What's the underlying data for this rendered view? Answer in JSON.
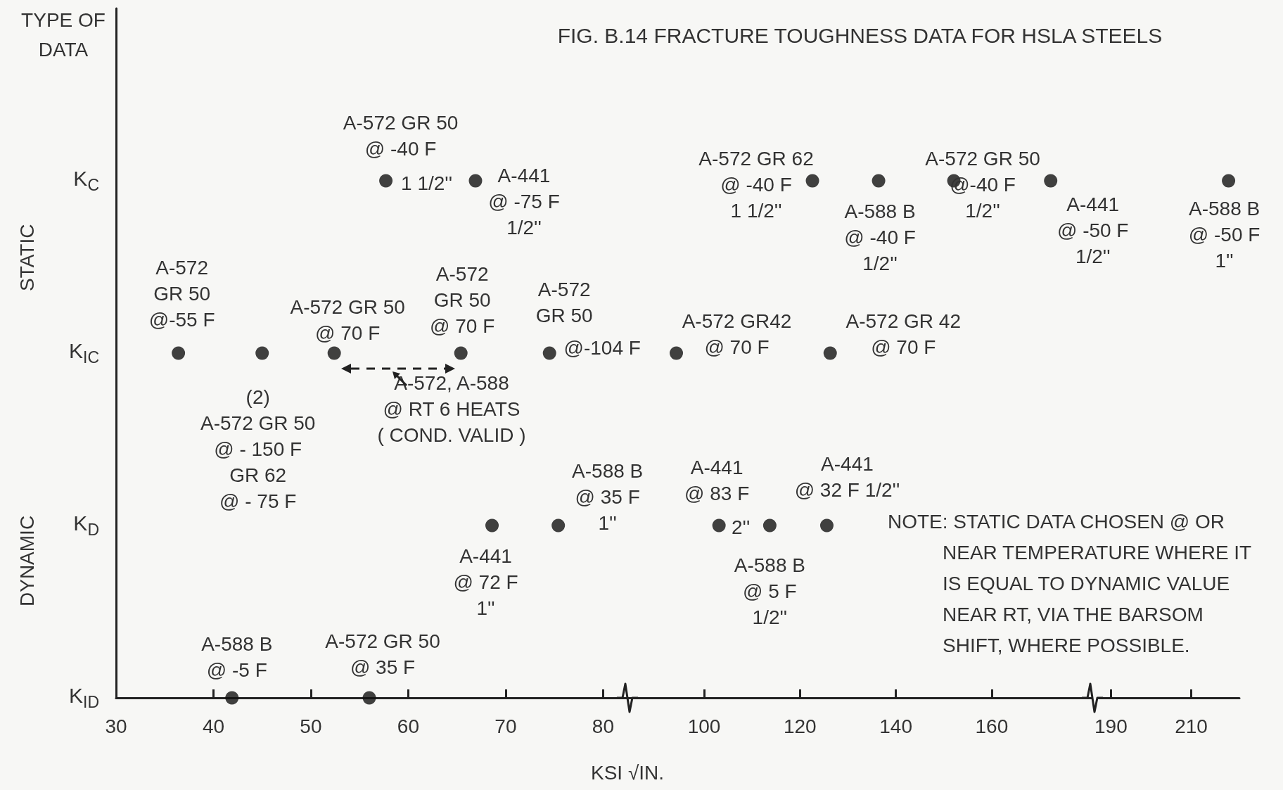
{
  "chart_data": [
    {
      "type": "scatter",
      "orientation": "horizontal",
      "ylabel": "TYPE OF\nDATA",
      "xlabel": "KSI √IN.",
      "marker": "circle",
      "grid": false,
      "categories": [
        "K$_{C}$",
        "K$_{IC}$",
        "K$_{D}$",
        "K$_{ID}$"
      ],
      "xlim": [
        30,
        82.5
      ],
      "xticks": [
        30,
        40,
        50,
        60,
        70,
        80
      ],
      "series": [
        {
          "color": "#111111",
          "values": [
            57.7,
            36.4,
            68.6,
            41.9
          ]
        },
        {
          "color": "#111111",
          "values": [
            66.9,
            45.0,
            75.4,
            56.0
          ]
        },
        {
          "color": "#111111",
          "values": [
            null,
            52.4,
            null,
            null
          ]
        },
        {
          "color": "#111111",
          "values": [
            null,
            65.4,
            null,
            null
          ]
        },
        {
          "color": "#111111",
          "values": [
            null,
            74.5,
            null,
            null
          ]
        }
      ],
      "annotations": [
        {
          "text": "A-572 GR 50\n@ -40 F",
          "x": 57.7,
          "y": "K$_{C}$"
        },
        {
          "text": "1 1/2''",
          "x": 57.7,
          "y": "K$_{C}$"
        },
        {
          "text": "A-441\n@ -75 F\n1/2''",
          "x": 66.9,
          "y": "K$_{C}$"
        },
        {
          "text": "A-572\nGR 50\n@-55 F",
          "x": 36.4,
          "y": "K$_{IC}$"
        },
        {
          "text": "A-572 GR 50\n@ 70 F",
          "x": 52.4,
          "y": "K$_{IC}$"
        },
        {
          "text": "A-572\nGR 50\n@ 70 F",
          "x": 65.4,
          "y": "K$_{IC}$"
        },
        {
          "text": "A-572\nGR 50",
          "x": 74.5,
          "y": "K$_{IC}$"
        },
        {
          "text": "@-104 F",
          "x": 74.5,
          "y": "K$_{IC}$"
        },
        "A-572, A-588\n@ RT 6 HEATS\n( COND. VALID )",
        {
          "text": "(2)\nA-572 GR 50\n@ - 150 F\nGR 62\n@ - 75 F",
          "x": 45.0,
          "y": "K$_{IC}$"
        },
        {
          "text": "A-588 B\n@ 35 F\n1''",
          "x": 75.4,
          "y": "K$_{D}$"
        },
        {
          "text": "A-441\n@ 72 F\n1''",
          "x": 68.6,
          "y": "K$_{D}$"
        },
        {
          "text": "A-588 B\n@ -5 F",
          "x": 41.9,
          "y": "K$_{ID}$"
        },
        {
          "text": "A-572 GR 50\n@ 35 F",
          "x": 56.0,
          "y": "K$_{ID}$"
        },
        "STATIC",
        "DYNAMIC"
      ]
    },
    {
      "type": "scatter",
      "orientation": "horizontal",
      "title": "FIG. B.14 FRACTURE TOUGHNESS DATA FOR HSLA STEELS",
      "marker": "circle",
      "grid": false,
      "tick_labels": "x",
      "categories": [
        "K$_{C}$",
        "K$_{IC}$",
        "K$_{D}$",
        "K$_{ID}$"
      ],
      "xlim": [
        84,
        181
      ],
      "xticks": [
        100,
        120,
        140,
        160
      ],
      "series": [
        {
          "color": "#111111",
          "values": [
            122.6,
            94.2,
            103.1,
            null
          ]
        },
        {
          "color": "#111111",
          "values": [
            136.4,
            126.3,
            113.7,
            null
          ]
        },
        {
          "color": "#111111",
          "values": [
            152.1,
            null,
            125.6,
            null
          ]
        },
        {
          "color": "#111111",
          "values": [
            172.3,
            null,
            null,
            null
          ]
        }
      ],
      "annotations": [
        {
          "text": "A-572 GR 62\n@ -40 F\n1 1/2''",
          "x": 122.6,
          "y": "K$_{C}$"
        },
        {
          "text": "A-588 B\n@ -40 F\n1/2''",
          "x": 136.4,
          "y": "K$_{C}$"
        },
        {
          "text": "A-572 GR 50\n@-40 F\n1/2''",
          "x": 152.1,
          "y": "K$_{C}$"
        },
        {
          "text": "A-441\n@ -50 F\n1/2''",
          "x": 172.3,
          "y": "K$_{C}$"
        },
        {
          "text": "A-572 GR42\n@ 70 F",
          "x": 94.2,
          "y": "K$_{IC}$"
        },
        {
          "text": "A-572 GR 42\n@ 70 F",
          "x": 126.3,
          "y": "K$_{IC}$"
        },
        {
          "text": "A-441\n@ 83 F",
          "x": 103.1,
          "y": "K$_{D}$"
        },
        {
          "text": "2''",
          "x": 103.1,
          "y": "K$_{D}$"
        },
        {
          "text": "A-441\n@ 32 F 1/2''",
          "x": 125.6,
          "y": "K$_{D}$"
        },
        {
          "text": "A-588 B\n@ 5 F\n1/2''",
          "x": 113.7,
          "y": "K$_{D}$"
        },
        "NOTE: STATIC DATA CHOSEN @ OR\nNEAR TEMPERATURE WHERE IT\nIS EQUAL TO DYNAMIC VALUE\nNEAR RT, VIA THE BARSOM\nSHIFT, WHERE POSSIBLE."
      ]
    },
    {
      "type": "scatter",
      "orientation": "horizontal",
      "marker": "circle",
      "grid": false,
      "tick_labels": "x",
      "categories": [
        "K$_{C}$",
        "K$_{IC}$",
        "K$_{D}$",
        "K$_{ID}$"
      ],
      "xlim": [
        187,
        222
      ],
      "xticks": [
        190,
        210
      ],
      "series": [
        {
          "color": "#111111",
          "values": [
            219.3,
            null,
            null,
            null
          ]
        }
      ],
      "annotations": [
        {
          "text": "A-588 B\n@ -50 F\n1''",
          "x": 219.3,
          "y": "K$_{C}$"
        }
      ]
    }
  ]
}
